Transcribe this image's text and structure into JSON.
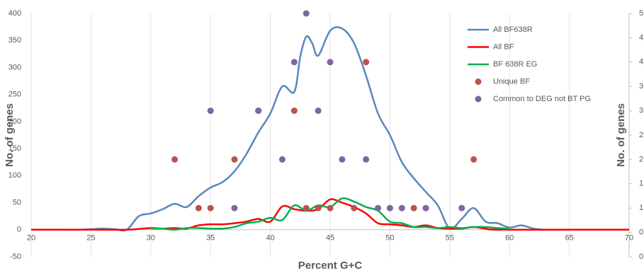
{
  "chart_data": {
    "type": "line",
    "xlabel": "Percent G+C",
    "ylabel": "No. of genes",
    "y2label": "No. of genes",
    "xlim": [
      20,
      70
    ],
    "xticks": [
      20,
      25,
      30,
      35,
      40,
      45,
      50,
      55,
      60,
      65,
      70
    ],
    "ylim": [
      -50,
      400
    ],
    "yticks": [
      -50,
      0,
      50,
      100,
      150,
      200,
      250,
      300,
      350,
      400
    ],
    "y2lim": [
      0,
      5
    ],
    "y2ticks": [
      0,
      {
        "value": 0.5,
        "label": "0"
      },
      1,
      {
        "value": 1.5,
        "label": "1"
      },
      2,
      {
        "value": 2.5,
        "label": "2"
      },
      3,
      {
        "value": 3.5,
        "label": "3"
      },
      4,
      {
        "value": 4.5,
        "label": "4"
      },
      5
    ],
    "grid": true,
    "legend": "upper right",
    "series": [
      {
        "name": "All BF638R",
        "type": "line",
        "color": "#5a86be",
        "x": [
          20,
          22,
          24,
          25,
          26,
          27,
          28,
          29,
          30,
          31,
          32,
          33,
          34,
          35,
          36,
          37,
          38,
          39,
          40,
          41,
          42,
          42.5,
          43,
          43.5,
          44,
          45,
          46,
          47,
          48,
          49,
          50,
          51,
          52,
          53,
          54,
          55,
          56,
          57,
          58,
          59,
          60,
          61,
          62,
          63,
          65,
          70
        ],
        "values": [
          0,
          0,
          0,
          1,
          2,
          1,
          0,
          25,
          30,
          38,
          48,
          42,
          62,
          78,
          88,
          108,
          140,
          180,
          215,
          265,
          255,
          320,
          357,
          345,
          322,
          368,
          372,
          345,
          285,
          215,
          175,
          125,
          95,
          70,
          45,
          2,
          20,
          40,
          15,
          12,
          4,
          8,
          2,
          0,
          0,
          0
        ]
      },
      {
        "name": "All BF",
        "type": "line",
        "color": "#ff0000",
        "x": [
          20,
          25,
          28,
          30,
          31,
          32,
          33,
          34,
          35,
          36,
          37,
          38,
          39,
          40,
          41,
          42,
          43,
          44,
          45,
          46,
          47,
          48,
          49,
          50,
          51,
          52,
          53,
          54,
          55,
          56,
          57,
          58,
          59,
          65,
          70
        ],
        "values": [
          0,
          0,
          0,
          3,
          2,
          3,
          2,
          8,
          10,
          10,
          12,
          15,
          20,
          15,
          43,
          38,
          35,
          38,
          56,
          50,
          42,
          30,
          12,
          10,
          8,
          5,
          8,
          3,
          2,
          2,
          5,
          2,
          0,
          0,
          0
        ]
      },
      {
        "name": "BF 638R EG",
        "type": "line",
        "color": "#00b050",
        "x": [
          30,
          31,
          32,
          33,
          34,
          35,
          36,
          37,
          38,
          39,
          40,
          41,
          42,
          43,
          44,
          45,
          46,
          47,
          48,
          49,
          50,
          51,
          52,
          53,
          54,
          55,
          56,
          57,
          58,
          59,
          60
        ],
        "values": [
          2,
          2,
          0,
          3,
          3,
          2,
          2,
          5,
          12,
          15,
          22,
          18,
          45,
          35,
          45,
          42,
          58,
          52,
          42,
          35,
          15,
          12,
          5,
          5,
          3,
          5,
          3,
          5,
          5,
          3,
          2
        ]
      },
      {
        "name": "Unique BF",
        "type": "scatter",
        "axis": "y2",
        "color": "#c0504d",
        "x": [
          32,
          34,
          35,
          37,
          39,
          42,
          43,
          44,
          45,
          47,
          48,
          52,
          57
        ],
        "values": [
          2,
          1,
          1,
          2,
          3,
          3,
          1,
          1,
          1,
          1,
          4,
          1,
          2
        ]
      },
      {
        "name": "Common to DEG not BT PG",
        "type": "scatter",
        "axis": "y2",
        "color": "#8064a2",
        "x": [
          35,
          37,
          39,
          41,
          42,
          43,
          44,
          45,
          46,
          48,
          49,
          50,
          51,
          53,
          56
        ],
        "values": [
          3,
          1,
          3,
          2,
          4,
          5,
          3,
          4,
          2,
          2,
          1,
          1,
          1,
          1,
          1
        ]
      }
    ]
  }
}
